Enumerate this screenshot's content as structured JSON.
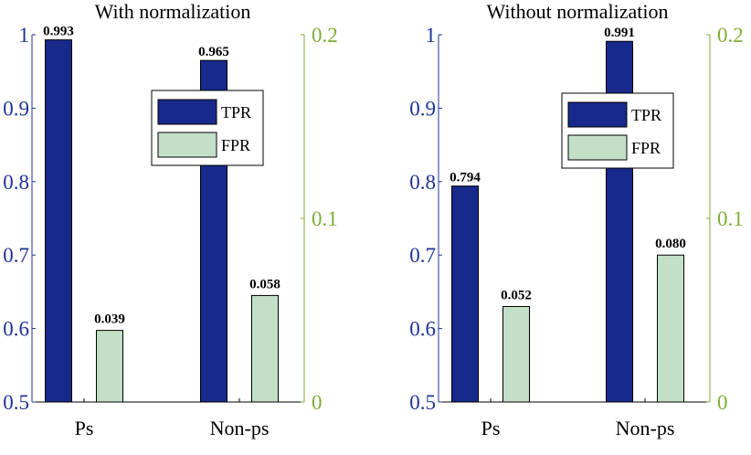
{
  "colors": {
    "tpr": "#17298a",
    "fpr": "#c3dfc6",
    "left_axis": "#1f3396",
    "right_axis": "#7fae36"
  },
  "chart_data": [
    {
      "type": "bar",
      "title": "With normalization",
      "categories": [
        "Ps",
        "Non-ps"
      ],
      "series": [
        {
          "name": "TPR",
          "axis": "left",
          "values": [
            0.993,
            0.965
          ],
          "labels": [
            "0.993",
            "0.965"
          ]
        },
        {
          "name": "FPR",
          "axis": "right",
          "values": [
            0.039,
            0.058
          ],
          "labels": [
            "0.039",
            "0.058"
          ]
        }
      ],
      "ylim_left": [
        0.5,
        1
      ],
      "ylim_right": [
        0,
        0.2
      ],
      "yticks_left": [
        "0.5",
        "0.6",
        "0.7",
        "0.8",
        "0.9",
        "1"
      ],
      "yticks_right": [
        "0",
        "0.1",
        "0.2"
      ],
      "legend": [
        "TPR",
        "FPR"
      ],
      "legend_position": "top-right"
    },
    {
      "type": "bar",
      "title": "Without normalization",
      "categories": [
        "Ps",
        "Non-ps"
      ],
      "series": [
        {
          "name": "TPR",
          "axis": "left",
          "values": [
            0.794,
            0.991
          ],
          "labels": [
            "0.794",
            "0.991"
          ]
        },
        {
          "name": "FPR",
          "axis": "right",
          "values": [
            0.052,
            0.08
          ],
          "labels": [
            "0.052",
            "0.080"
          ]
        }
      ],
      "ylim_left": [
        0.5,
        1
      ],
      "ylim_right": [
        0,
        0.2
      ],
      "yticks_left": [
        "0.5",
        "0.6",
        "0.7",
        "0.8",
        "0.9",
        "1"
      ],
      "yticks_right": [
        "0",
        "0.1",
        "0.2"
      ],
      "legend": [
        "TPR",
        "FPR"
      ],
      "legend_position": "top-right"
    }
  ]
}
